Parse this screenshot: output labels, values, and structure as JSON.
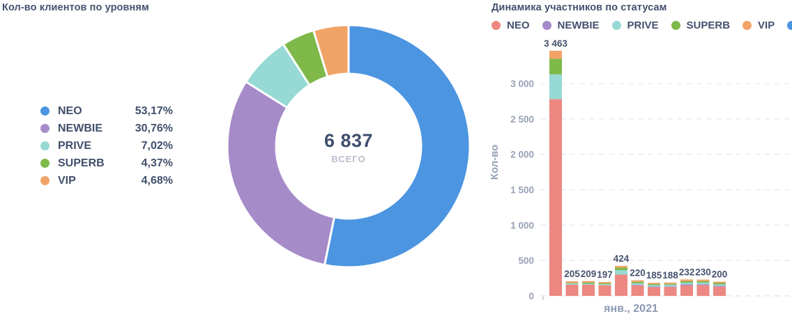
{
  "page": {
    "background": "#ffffff"
  },
  "chart_data": [
    {
      "type": "pie",
      "variant": "donut",
      "title": "Кол-во клиентов по уровням",
      "center_value": "6 837",
      "center_label": "ВСЕГО",
      "legend_position": "left",
      "series": [
        {
          "name": "NEO",
          "pct": 53.17,
          "pct_label": "53,17%",
          "color": "#4b95e1"
        },
        {
          "name": "NEWBIE",
          "pct": 30.76,
          "pct_label": "30,76%",
          "color": "#a68bc9"
        },
        {
          "name": "PRIVE",
          "pct": 7.02,
          "pct_label": "7,02%",
          "color": "#97d9d4"
        },
        {
          "name": "SUPERB",
          "pct": 4.37,
          "pct_label": "4,37%",
          "color": "#7eb94a"
        },
        {
          "name": "VIP",
          "pct": 4.68,
          "pct_label": "4,68%",
          "color": "#f1a366"
        }
      ]
    },
    {
      "type": "bar",
      "stacked": true,
      "title": "Динамика участников по статусам",
      "xlabel": "янв., 2021",
      "ylabel": "Кол-во",
      "ylim": [
        0,
        3500
      ],
      "grid": "horizontal-dashed",
      "yticks": [
        {
          "value": 0,
          "label": "0"
        },
        {
          "value": 500,
          "label": "500"
        },
        {
          "value": 1000,
          "label": "1 000"
        },
        {
          "value": 1500,
          "label": "1 500"
        },
        {
          "value": 2000,
          "label": "2 000"
        },
        {
          "value": 2500,
          "label": "2 500"
        },
        {
          "value": 3000,
          "label": "3 000"
        }
      ],
      "legend": [
        {
          "name": "NEO",
          "color": "#ec8781"
        },
        {
          "name": "NEWBIE",
          "color": "#a68bc9"
        },
        {
          "name": "PRIVE",
          "color": "#97d9d4"
        },
        {
          "name": "SUPERB",
          "color": "#7eb94a"
        },
        {
          "name": "VIP",
          "color": "#f1a366"
        },
        {
          "name": "",
          "color": "#4b95e1",
          "clipped": true
        }
      ],
      "series_colors": {
        "NEO": "#ec8781",
        "NEWBIE": "#a68bc9",
        "PRIVE": "#97d9d4",
        "SUPERB": "#7eb94a",
        "VIP": "#f1a366"
      },
      "bars": [
        {
          "total": 3463,
          "label": "3 463",
          "segments": [
            [
              "NEO",
              2780
            ],
            [
              "PRIVE",
              350
            ],
            [
              "SUPERB",
              220
            ],
            [
              "VIP",
              113
            ]
          ]
        },
        {
          "total": 205,
          "label": "205",
          "segments": [
            [
              "NEO",
              158
            ],
            [
              "PRIVE",
              17
            ],
            [
              "SUPERB",
              8
            ],
            [
              "VIP",
              22
            ]
          ]
        },
        {
          "total": 209,
          "label": "209",
          "segments": [
            [
              "NEO",
              158
            ],
            [
              "PRIVE",
              14
            ],
            [
              "SUPERB",
              17
            ],
            [
              "VIP",
              20
            ]
          ]
        },
        {
          "total": 197,
          "label": "197",
          "segments": [
            [
              "NEO",
              150
            ],
            [
              "PRIVE",
              15
            ],
            [
              "SUPERB",
              14
            ],
            [
              "VIP",
              18
            ]
          ]
        },
        {
          "total": 424,
          "label": "424",
          "segments": [
            [
              "NEO",
              302
            ],
            [
              "PRIVE",
              62
            ],
            [
              "SUPERB",
              35
            ],
            [
              "VIP",
              25
            ]
          ]
        },
        {
          "total": 220,
          "label": "220",
          "segments": [
            [
              "NEO",
              148
            ],
            [
              "NEWBIE",
              8
            ],
            [
              "PRIVE",
              22
            ],
            [
              "SUPERB",
              20
            ],
            [
              "VIP",
              22
            ]
          ]
        },
        {
          "total": 185,
          "label": "185",
          "segments": [
            [
              "NEO",
              122
            ],
            [
              "NEWBIE",
              10
            ],
            [
              "PRIVE",
              21
            ],
            [
              "SUPERB",
              14
            ],
            [
              "VIP",
              18
            ]
          ]
        },
        {
          "total": 188,
          "label": "188",
          "segments": [
            [
              "NEO",
              126
            ],
            [
              "NEWBIE",
              8
            ],
            [
              "PRIVE",
              22
            ],
            [
              "SUPERB",
              14
            ],
            [
              "VIP",
              18
            ]
          ]
        },
        {
          "total": 232,
          "label": "232",
          "segments": [
            [
              "NEO",
              148
            ],
            [
              "NEWBIE",
              14
            ],
            [
              "PRIVE",
              24
            ],
            [
              "SUPERB",
              22
            ],
            [
              "VIP",
              24
            ]
          ]
        },
        {
          "total": 230,
          "label": "230",
          "segments": [
            [
              "NEO",
              152
            ],
            [
              "NEWBIE",
              10
            ],
            [
              "PRIVE",
              26
            ],
            [
              "SUPERB",
              20
            ],
            [
              "VIP",
              22
            ]
          ]
        },
        {
          "total": 200,
          "label": "200",
          "segments": [
            [
              "NEO",
              130
            ],
            [
              "NEWBIE",
              14
            ],
            [
              "PRIVE",
              18
            ],
            [
              "SUPERB",
              20
            ],
            [
              "VIP",
              18
            ]
          ]
        }
      ]
    }
  ]
}
